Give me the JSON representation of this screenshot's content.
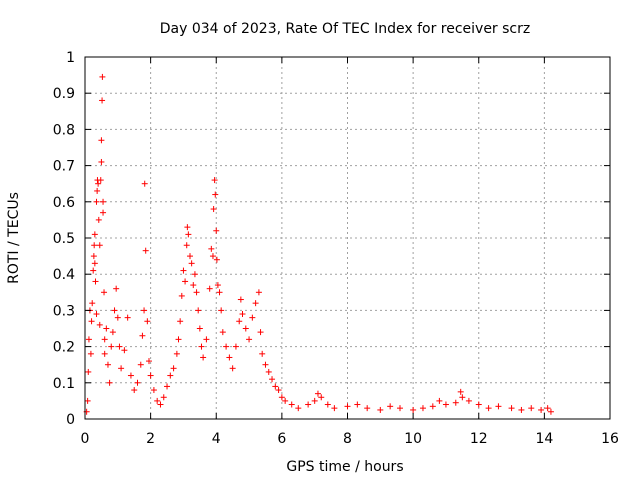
{
  "chart_data": {
    "type": "scatter",
    "title": "Day 034 of 2023, Rate Of TEC Index for receiver scrz",
    "xlabel": "GPS time / hours",
    "ylabel": "ROTI / TECUs",
    "xlim": [
      0,
      16
    ],
    "ylim": [
      0,
      1
    ],
    "x_ticks": [
      "0",
      "2",
      "4",
      "6",
      "8",
      "10",
      "12",
      "14",
      "16"
    ],
    "y_ticks": [
      "0",
      "0.1",
      "0.2",
      "0.3",
      "0.4",
      "0.5",
      "0.6",
      "0.7",
      "0.8",
      "0.9",
      "1"
    ],
    "grid": true,
    "marker": "+",
    "color": "#ff0000",
    "series": [
      {
        "name": "ROTI",
        "points": [
          [
            0.05,
            0.02
          ],
          [
            0.08,
            0.05
          ],
          [
            0.1,
            0.13
          ],
          [
            0.12,
            0.22
          ],
          [
            0.15,
            0.3
          ],
          [
            0.18,
            0.18
          ],
          [
            0.2,
            0.27
          ],
          [
            0.22,
            0.32
          ],
          [
            0.25,
            0.41
          ],
          [
            0.27,
            0.45
          ],
          [
            0.28,
            0.48
          ],
          [
            0.3,
            0.51
          ],
          [
            0.3,
            0.43
          ],
          [
            0.32,
            0.38
          ],
          [
            0.35,
            0.29
          ],
          [
            0.35,
            0.6
          ],
          [
            0.37,
            0.63
          ],
          [
            0.38,
            0.66
          ],
          [
            0.4,
            0.65
          ],
          [
            0.42,
            0.55
          ],
          [
            0.45,
            0.48
          ],
          [
            0.45,
            0.26
          ],
          [
            0.48,
            0.66
          ],
          [
            0.5,
            0.71
          ],
          [
            0.5,
            0.77
          ],
          [
            0.52,
            0.88
          ],
          [
            0.53,
            0.945
          ],
          [
            0.55,
            0.6
          ],
          [
            0.55,
            0.57
          ],
          [
            0.58,
            0.35
          ],
          [
            0.6,
            0.22
          ],
          [
            0.6,
            0.18
          ],
          [
            0.65,
            0.25
          ],
          [
            0.7,
            0.15
          ],
          [
            0.75,
            0.1
          ],
          [
            0.8,
            0.2
          ],
          [
            0.85,
            0.24
          ],
          [
            0.9,
            0.3
          ],
          [
            0.95,
            0.36
          ],
          [
            1.0,
            0.28
          ],
          [
            1.05,
            0.2
          ],
          [
            1.1,
            0.14
          ],
          [
            1.2,
            0.19
          ],
          [
            1.3,
            0.28
          ],
          [
            1.4,
            0.12
          ],
          [
            1.5,
            0.08
          ],
          [
            1.6,
            0.1
          ],
          [
            1.7,
            0.15
          ],
          [
            1.75,
            0.23
          ],
          [
            1.8,
            0.3
          ],
          [
            1.82,
            0.65
          ],
          [
            1.85,
            0.465
          ],
          [
            1.9,
            0.27
          ],
          [
            1.95,
            0.16
          ],
          [
            2.0,
            0.12
          ],
          [
            2.1,
            0.08
          ],
          [
            2.2,
            0.05
          ],
          [
            2.3,
            0.04
          ],
          [
            2.4,
            0.06
          ],
          [
            2.5,
            0.09
          ],
          [
            2.6,
            0.12
          ],
          [
            2.7,
            0.14
          ],
          [
            2.8,
            0.18
          ],
          [
            2.85,
            0.22
          ],
          [
            2.9,
            0.27
          ],
          [
            2.95,
            0.34
          ],
          [
            3.0,
            0.41
          ],
          [
            3.05,
            0.38
          ],
          [
            3.1,
            0.48
          ],
          [
            3.12,
            0.53
          ],
          [
            3.15,
            0.51
          ],
          [
            3.2,
            0.45
          ],
          [
            3.25,
            0.43
          ],
          [
            3.3,
            0.37
          ],
          [
            3.35,
            0.4
          ],
          [
            3.4,
            0.35
          ],
          [
            3.45,
            0.3
          ],
          [
            3.5,
            0.25
          ],
          [
            3.55,
            0.2
          ],
          [
            3.6,
            0.17
          ],
          [
            3.7,
            0.22
          ],
          [
            3.8,
            0.36
          ],
          [
            3.85,
            0.47
          ],
          [
            3.9,
            0.45
          ],
          [
            3.92,
            0.58
          ],
          [
            3.95,
            0.66
          ],
          [
            3.97,
            0.62
          ],
          [
            4.0,
            0.52
          ],
          [
            4.02,
            0.44
          ],
          [
            4.05,
            0.37
          ],
          [
            4.1,
            0.35
          ],
          [
            4.15,
            0.3
          ],
          [
            4.2,
            0.24
          ],
          [
            4.3,
            0.2
          ],
          [
            4.4,
            0.17
          ],
          [
            4.5,
            0.14
          ],
          [
            4.6,
            0.2
          ],
          [
            4.7,
            0.27
          ],
          [
            4.75,
            0.33
          ],
          [
            4.8,
            0.29
          ],
          [
            4.9,
            0.25
          ],
          [
            5.0,
            0.22
          ],
          [
            5.1,
            0.28
          ],
          [
            5.2,
            0.32
          ],
          [
            5.3,
            0.35
          ],
          [
            5.35,
            0.24
          ],
          [
            5.4,
            0.18
          ],
          [
            5.5,
            0.15
          ],
          [
            5.6,
            0.13
          ],
          [
            5.7,
            0.11
          ],
          [
            5.8,
            0.09
          ],
          [
            5.9,
            0.08
          ],
          [
            6.0,
            0.06
          ],
          [
            6.1,
            0.05
          ],
          [
            6.3,
            0.04
          ],
          [
            6.5,
            0.03
          ],
          [
            6.8,
            0.04
          ],
          [
            7.0,
            0.05
          ],
          [
            7.1,
            0.07
          ],
          [
            7.2,
            0.06
          ],
          [
            7.4,
            0.04
          ],
          [
            7.6,
            0.03
          ],
          [
            8.0,
            0.035
          ],
          [
            8.3,
            0.04
          ],
          [
            8.6,
            0.03
          ],
          [
            9.0,
            0.025
          ],
          [
            9.3,
            0.035
          ],
          [
            9.6,
            0.03
          ],
          [
            10.0,
            0.025
          ],
          [
            10.3,
            0.03
          ],
          [
            10.6,
            0.035
          ],
          [
            10.8,
            0.05
          ],
          [
            11.0,
            0.04
          ],
          [
            11.3,
            0.045
          ],
          [
            11.45,
            0.075
          ],
          [
            11.5,
            0.06
          ],
          [
            11.7,
            0.05
          ],
          [
            12.0,
            0.04
          ],
          [
            12.3,
            0.03
          ],
          [
            12.6,
            0.035
          ],
          [
            13.0,
            0.03
          ],
          [
            13.3,
            0.025
          ],
          [
            13.6,
            0.03
          ],
          [
            13.9,
            0.025
          ],
          [
            14.1,
            0.03
          ],
          [
            14.2,
            0.02
          ]
        ]
      }
    ]
  }
}
